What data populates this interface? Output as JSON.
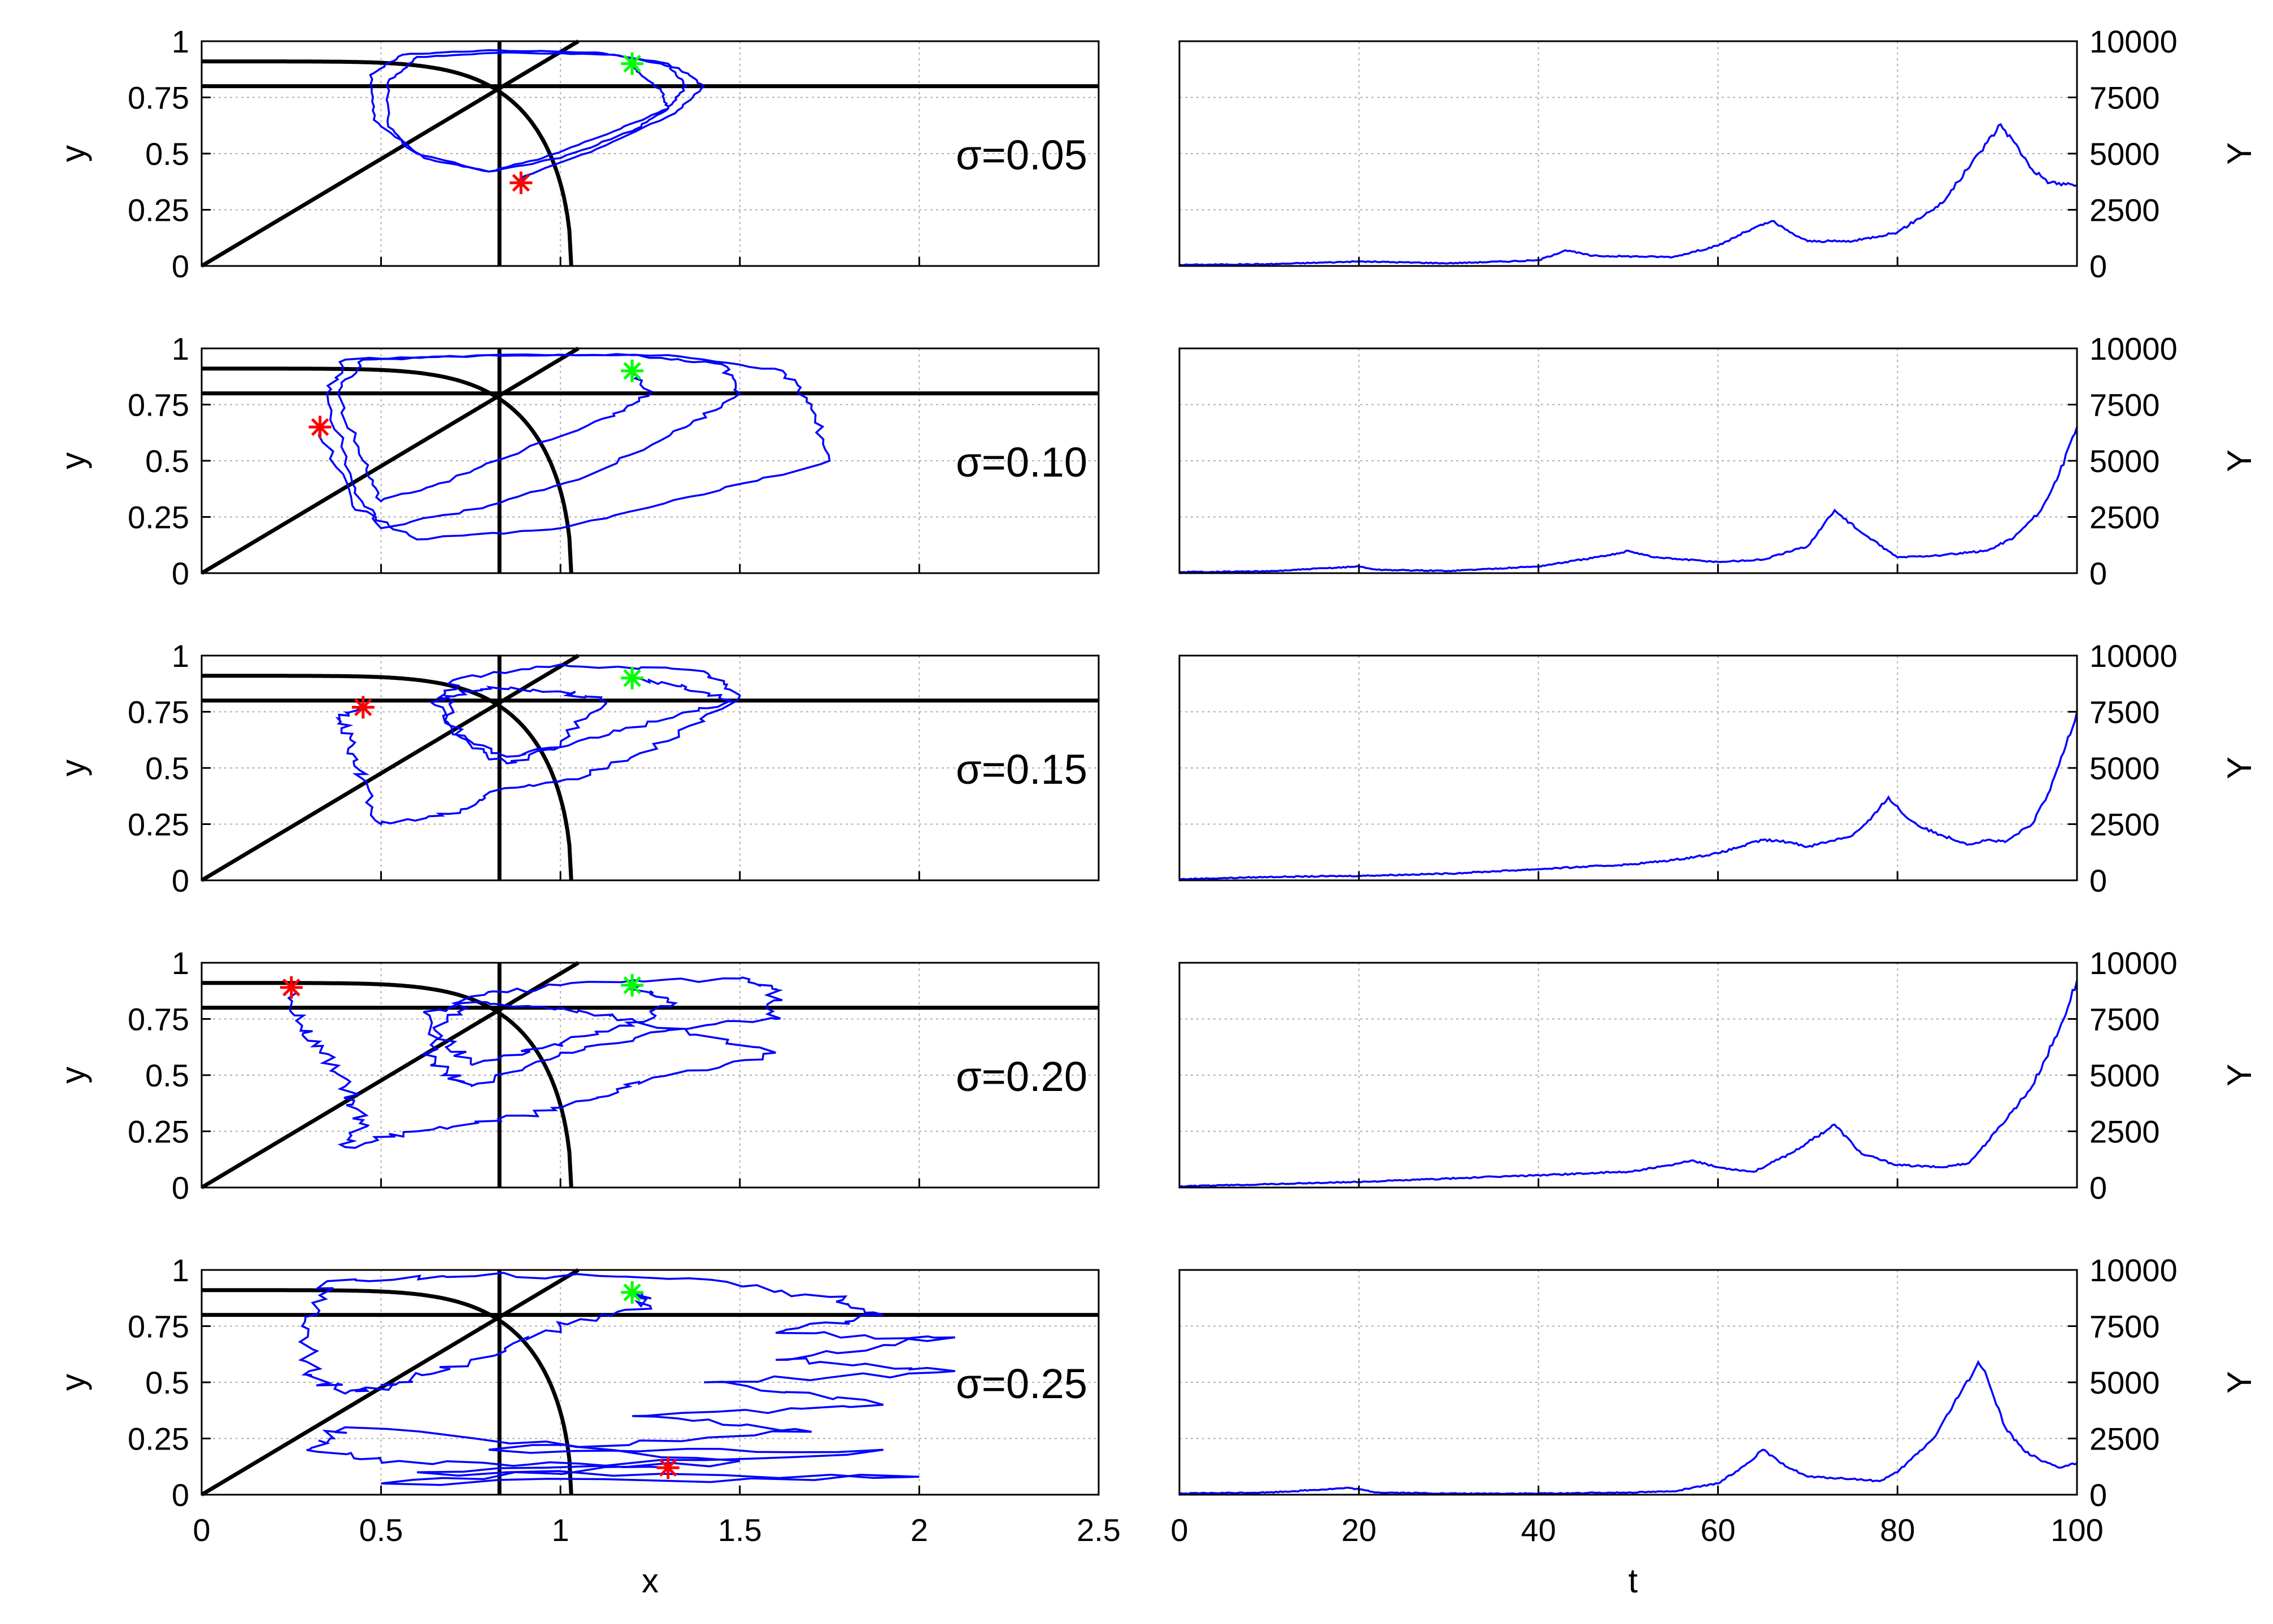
{
  "colors": {
    "trajectory": "#0000ff",
    "series": "#0000ff",
    "nullcline": "#000000",
    "start_marker": "#00ff00",
    "end_marker": "#ff0000",
    "grid": "#b0b0b0"
  },
  "left_x_label": "x",
  "right_x_label": "t",
  "left_y_label": "y",
  "right_y_label": "Y",
  "chart_data": [
    {
      "type": "line",
      "panel": "phase",
      "annotation": "σ=0.05",
      "xlim": [
        0,
        2.5
      ],
      "ylim": [
        0,
        1
      ],
      "x_ticks": [
        "0",
        "0.5",
        "1",
        "1.5",
        "2",
        "2.5"
      ],
      "y_ticks": [
        "0",
        "0.25",
        "0.5",
        "0.75",
        "1"
      ],
      "nullclines": {
        "horizontal_y": 0.8,
        "vertical_x": 0.83,
        "diagonal": [
          [
            0,
            0
          ],
          [
            1.05,
            1.0
          ]
        ],
        "curve_endpoint_x": 1.03
      },
      "start_marker": [
        1.2,
        0.9
      ],
      "end_marker": [
        0.89,
        0.37
      ],
      "trajectory": [
        [
          1.2,
          0.9
        ],
        [
          1.22,
          0.86
        ],
        [
          1.28,
          0.78
        ],
        [
          1.3,
          0.7
        ],
        [
          1.2,
          0.6
        ],
        [
          1.0,
          0.48
        ],
        [
          0.8,
          0.42
        ],
        [
          0.6,
          0.5
        ],
        [
          0.48,
          0.65
        ],
        [
          0.47,
          0.85
        ],
        [
          0.56,
          0.94
        ],
        [
          0.8,
          0.96
        ],
        [
          1.1,
          0.95
        ],
        [
          1.3,
          0.9
        ],
        [
          1.35,
          0.8
        ],
        [
          1.3,
          0.7
        ],
        [
          1.15,
          0.6
        ],
        [
          0.95,
          0.48
        ],
        [
          0.8,
          0.42
        ],
        [
          0.62,
          0.48
        ],
        [
          0.52,
          0.62
        ],
        [
          0.52,
          0.82
        ],
        [
          0.6,
          0.93
        ],
        [
          0.85,
          0.95
        ],
        [
          1.15,
          0.94
        ],
        [
          1.33,
          0.88
        ],
        [
          1.4,
          0.8
        ],
        [
          1.32,
          0.68
        ],
        [
          1.1,
          0.52
        ],
        [
          0.9,
          0.4
        ],
        [
          0.89,
          0.37
        ]
      ]
    },
    {
      "type": "line",
      "panel": "phase",
      "annotation": "σ=0.10",
      "xlim": [
        0,
        2.5
      ],
      "ylim": [
        0,
        1
      ],
      "x_ticks": [
        "0",
        "0.5",
        "1",
        "1.5",
        "2",
        "2.5"
      ],
      "y_ticks": [
        "0",
        "0.25",
        "0.5",
        "0.75",
        "1"
      ],
      "nullclines": {
        "horizontal_y": 0.8,
        "vertical_x": 0.83,
        "diagonal": [
          [
            0,
            0
          ],
          [
            1.05,
            1.0
          ]
        ],
        "curve_endpoint_x": 1.03
      },
      "start_marker": [
        1.2,
        0.9
      ],
      "end_marker": [
        0.33,
        0.65
      ],
      "trajectory": [
        [
          1.2,
          0.9
        ],
        [
          1.25,
          0.8
        ],
        [
          1.15,
          0.7
        ],
        [
          0.9,
          0.55
        ],
        [
          0.7,
          0.42
        ],
        [
          0.5,
          0.32
        ],
        [
          0.45,
          0.5
        ],
        [
          0.38,
          0.8
        ],
        [
          0.45,
          0.95
        ],
        [
          0.8,
          0.97
        ],
        [
          1.2,
          0.97
        ],
        [
          1.45,
          0.93
        ],
        [
          1.5,
          0.8
        ],
        [
          1.35,
          0.65
        ],
        [
          1.1,
          0.45
        ],
        [
          0.8,
          0.3
        ],
        [
          0.5,
          0.2
        ],
        [
          0.42,
          0.4
        ],
        [
          0.35,
          0.8
        ],
        [
          0.4,
          0.95
        ],
        [
          0.8,
          0.97
        ],
        [
          1.3,
          0.97
        ],
        [
          1.62,
          0.9
        ],
        [
          1.7,
          0.75
        ],
        [
          1.75,
          0.5
        ],
        [
          1.4,
          0.35
        ],
        [
          1.0,
          0.2
        ],
        [
          0.6,
          0.15
        ],
        [
          0.42,
          0.3
        ],
        [
          0.33,
          0.65
        ]
      ]
    },
    {
      "type": "line",
      "panel": "phase",
      "annotation": "σ=0.15",
      "xlim": [
        0,
        2.5
      ],
      "ylim": [
        0,
        1
      ],
      "x_ticks": [
        "0",
        "0.5",
        "1",
        "1.5",
        "2",
        "2.5"
      ],
      "y_ticks": [
        "0",
        "0.25",
        "0.5",
        "0.75",
        "1"
      ],
      "nullclines": {
        "horizontal_y": 0.8,
        "vertical_x": 0.83,
        "diagonal": [
          [
            0,
            0
          ],
          [
            1.05,
            1.0
          ]
        ],
        "curve_endpoint_x": 1.03
      },
      "start_marker": [
        1.2,
        0.9
      ],
      "end_marker": [
        0.45,
        0.77
      ],
      "trajectory": [
        [
          1.2,
          0.9
        ],
        [
          1.35,
          0.86
        ],
        [
          1.48,
          0.8
        ],
        [
          1.3,
          0.72
        ],
        [
          1.05,
          0.62
        ],
        [
          0.85,
          0.55
        ],
        [
          0.7,
          0.65
        ],
        [
          0.68,
          0.82
        ],
        [
          0.8,
          0.86
        ],
        [
          1.0,
          0.84
        ],
        [
          1.12,
          0.8
        ],
        [
          1.0,
          0.6
        ],
        [
          0.85,
          0.52
        ],
        [
          0.75,
          0.6
        ],
        [
          0.65,
          0.78
        ],
        [
          0.72,
          0.9
        ],
        [
          1.0,
          0.96
        ],
        [
          1.4,
          0.93
        ],
        [
          1.5,
          0.82
        ],
        [
          1.3,
          0.62
        ],
        [
          1.05,
          0.45
        ],
        [
          0.82,
          0.4
        ],
        [
          0.72,
          0.3
        ],
        [
          0.5,
          0.25
        ],
        [
          0.45,
          0.45
        ],
        [
          0.42,
          0.6
        ],
        [
          0.38,
          0.72
        ],
        [
          0.45,
          0.77
        ]
      ]
    },
    {
      "type": "line",
      "panel": "phase",
      "annotation": "σ=0.20",
      "xlim": [
        0,
        2.5
      ],
      "ylim": [
        0,
        1
      ],
      "x_ticks": [
        "0",
        "0.5",
        "1",
        "1.5",
        "2",
        "2.5"
      ],
      "y_ticks": [
        "0",
        "0.25",
        "0.5",
        "0.75",
        "1"
      ],
      "nullclines": {
        "horizontal_y": 0.8,
        "vertical_x": 0.83,
        "diagonal": [
          [
            0,
            0
          ],
          [
            1.05,
            1.0
          ]
        ],
        "curve_endpoint_x": 1.03
      },
      "start_marker": [
        1.2,
        0.9
      ],
      "end_marker": [
        0.25,
        0.89
      ],
      "trajectory": [
        [
          1.2,
          0.9
        ],
        [
          1.32,
          0.82
        ],
        [
          1.2,
          0.72
        ],
        [
          0.95,
          0.62
        ],
        [
          0.75,
          0.55
        ],
        [
          0.65,
          0.7
        ],
        [
          0.75,
          0.85
        ],
        [
          1.0,
          0.9
        ],
        [
          1.5,
          0.93
        ],
        [
          1.6,
          0.88
        ],
        [
          1.6,
          0.75
        ],
        [
          1.3,
          0.7
        ],
        [
          1.0,
          0.6
        ],
        [
          0.75,
          0.45
        ],
        [
          0.65,
          0.55
        ],
        [
          0.62,
          0.78
        ],
        [
          0.72,
          0.82
        ],
        [
          1.0,
          0.8
        ],
        [
          1.2,
          0.75
        ],
        [
          1.6,
          0.6
        ],
        [
          1.3,
          0.5
        ],
        [
          1.1,
          0.4
        ],
        [
          0.9,
          0.32
        ],
        [
          0.6,
          0.25
        ],
        [
          0.4,
          0.18
        ],
        [
          0.45,
          0.3
        ],
        [
          0.4,
          0.45
        ],
        [
          0.33,
          0.6
        ],
        [
          0.28,
          0.72
        ],
        [
          0.25,
          0.89
        ]
      ]
    },
    {
      "type": "line",
      "panel": "phase",
      "annotation": "σ=0.25",
      "xlim": [
        0,
        2.5
      ],
      "ylim": [
        0,
        1
      ],
      "x_ticks": [
        "0",
        "0.5",
        "1",
        "1.5",
        "2",
        "2.5"
      ],
      "y_ticks": [
        "0",
        "0.25",
        "0.5",
        "0.75",
        "1"
      ],
      "nullclines": {
        "horizontal_y": 0.8,
        "vertical_x": 0.83,
        "diagonal": [
          [
            0,
            0
          ],
          [
            1.05,
            1.0
          ]
        ],
        "curve_endpoint_x": 1.03
      },
      "start_marker": [
        1.2,
        0.9
      ],
      "end_marker": [
        1.3,
        0.12
      ],
      "trajectory": [
        [
          1.2,
          0.9
        ],
        [
          1.25,
          0.84
        ],
        [
          1.0,
          0.75
        ],
        [
          0.75,
          0.6
        ],
        [
          0.55,
          0.5
        ],
        [
          0.4,
          0.45
        ],
        [
          0.3,
          0.55
        ],
        [
          0.28,
          0.75
        ],
        [
          0.35,
          0.95
        ],
        [
          0.8,
          0.98
        ],
        [
          1.3,
          0.96
        ],
        [
          1.75,
          0.88
        ],
        [
          1.9,
          0.8
        ],
        [
          1.6,
          0.72
        ],
        [
          2.1,
          0.7
        ],
        [
          1.6,
          0.6
        ],
        [
          2.1,
          0.55
        ],
        [
          1.4,
          0.5
        ],
        [
          1.9,
          0.4
        ],
        [
          1.2,
          0.35
        ],
        [
          1.7,
          0.28
        ],
        [
          0.8,
          0.2
        ],
        [
          1.9,
          0.2
        ],
        [
          0.6,
          0.1
        ],
        [
          2.0,
          0.08
        ],
        [
          0.5,
          0.05
        ],
        [
          1.5,
          0.15
        ],
        [
          0.4,
          0.3
        ],
        [
          0.3,
          0.2
        ],
        [
          0.55,
          0.15
        ],
        [
          1.3,
          0.12
        ]
      ]
    },
    {
      "type": "line",
      "panel": "time",
      "xlim": [
        0,
        100
      ],
      "ylim": [
        0,
        10000
      ],
      "x_ticks": [
        "0",
        "20",
        "40",
        "60",
        "80",
        "100"
      ],
      "y_ticks": [
        "0",
        "2500",
        "5000",
        "7500",
        "10000"
      ],
      "x": [
        0,
        10,
        20,
        30,
        40,
        43,
        46,
        55,
        60,
        63,
        66,
        68,
        70,
        75,
        80,
        85,
        90,
        91.5,
        93,
        95,
        97,
        100
      ],
      "y": [
        50,
        80,
        200,
        120,
        250,
        700,
        450,
        400,
        900,
        1500,
        2000,
        1500,
        1100,
        1100,
        1500,
        2800,
        5500,
        6300,
        5500,
        4300,
        3700,
        3600
      ]
    },
    {
      "type": "line",
      "panel": "time",
      "xlim": [
        0,
        100
      ],
      "ylim": [
        0,
        10000
      ],
      "x": [
        0,
        10,
        20,
        22,
        30,
        40,
        48,
        50,
        53,
        60,
        65,
        70,
        73,
        76,
        80,
        85,
        90,
        93,
        96,
        98,
        100
      ],
      "y": [
        50,
        80,
        300,
        150,
        100,
        300,
        800,
        1000,
        700,
        500,
        600,
        1200,
        2800,
        1800,
        700,
        800,
        1000,
        1600,
        2800,
        4400,
        6500
      ]
    },
    {
      "type": "line",
      "panel": "time",
      "xlim": [
        0,
        100
      ],
      "ylim": [
        0,
        10000
      ],
      "x": [
        0,
        10,
        20,
        30,
        40,
        50,
        55,
        60,
        65,
        68,
        70,
        75,
        77,
        79,
        81,
        83,
        85,
        88,
        90,
        92,
        95,
        97,
        100
      ],
      "y": [
        50,
        150,
        200,
        300,
        500,
        700,
        900,
        1200,
        1800,
        1700,
        1500,
        2000,
        2700,
        3700,
        2800,
        2300,
        2000,
        1600,
        1800,
        1700,
        2500,
        4000,
        7500
      ]
    },
    {
      "type": "line",
      "panel": "time",
      "xlim": [
        0,
        100
      ],
      "ylim": [
        0,
        10000
      ],
      "x": [
        0,
        10,
        20,
        30,
        40,
        50,
        55,
        57,
        60,
        64,
        68,
        70,
        73,
        76,
        80,
        85,
        88,
        91,
        95,
        98,
        100
      ],
      "y": [
        50,
        150,
        250,
        400,
        550,
        700,
        1000,
        1200,
        900,
        700,
        1500,
        2000,
        2800,
        1500,
        1000,
        900,
        1100,
        2500,
        4500,
        7000,
        9200
      ]
    },
    {
      "type": "line",
      "panel": "time",
      "xlim": [
        0,
        100
      ],
      "ylim": [
        0,
        10000
      ],
      "x": [
        0,
        10,
        19,
        22,
        30,
        40,
        50,
        55,
        60,
        63,
        65,
        67,
        70,
        75,
        78,
        80,
        84,
        87,
        89,
        90,
        92,
        94,
        96,
        98,
        100
      ],
      "y": [
        50,
        100,
        300,
        100,
        50,
        50,
        100,
        150,
        500,
        1300,
        2000,
        1400,
        800,
        700,
        600,
        1000,
        2500,
        4500,
        5900,
        5200,
        3000,
        2000,
        1500,
        1200,
        1400
      ]
    }
  ]
}
